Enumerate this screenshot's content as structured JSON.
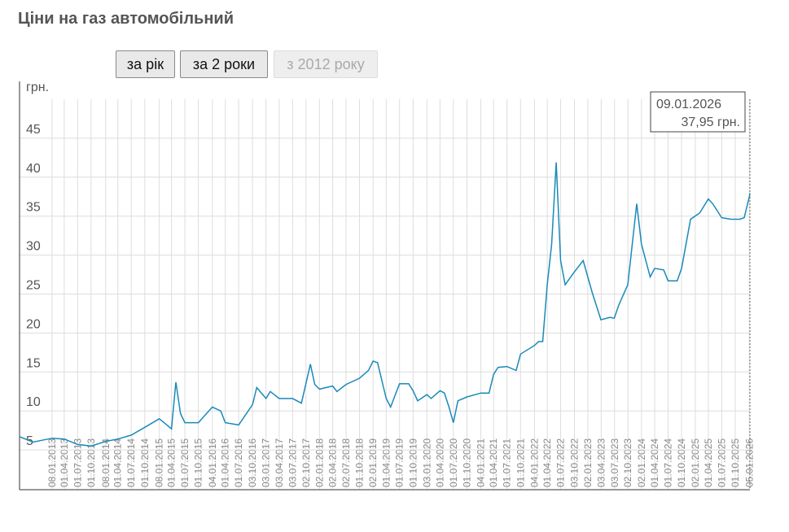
{
  "title": "Ціни на газ автомобільний",
  "buttons": [
    "за рік",
    "за 2 роки",
    "з 2012 року"
  ],
  "chart_data": {
    "type": "line",
    "y_label": "грн.",
    "color": "#1a8ab8",
    "grid": true,
    "xlim": [
      "01.06.2012",
      "09.01.2026"
    ],
    "ylim": [
      0,
      50
    ],
    "yticks": [
      5,
      10,
      15,
      20,
      25,
      30,
      35,
      40,
      45
    ],
    "xticks": [
      "08.01.2013",
      "01.04.2013",
      "01.07.2013",
      "01.10.2013",
      "08.01.2014",
      "01.04.2014",
      "01.07.2014",
      "01.10.2014",
      "08.01.2015",
      "01.04.2015",
      "01.07.2015",
      "01.10.2015",
      "04.01.2016",
      "01.04.2016",
      "01.07.2016",
      "03.10.2016",
      "03.01.2017",
      "03.04.2017",
      "03.07.2017",
      "02.10.2017",
      "02.01.2018",
      "02.04.2018",
      "02.07.2018",
      "01.10.2018",
      "02.01.2019",
      "01.04.2019",
      "01.07.2019",
      "01.10.2019",
      "03.01.2020",
      "01.04.2020",
      "01.07.2020",
      "01.10.2020",
      "04.01.2021",
      "01.04.2021",
      "01.07.2021",
      "01.10.2021",
      "04.01.2022",
      "01.04.2022",
      "01.07.2022",
      "03.10.2022",
      "02.01.2023",
      "03.04.2023",
      "03.07.2023",
      "02.10.2023",
      "02.01.2024",
      "01.04.2024",
      "01.07.2024",
      "01.10.2024",
      "02.01.2025",
      "01.04.2025",
      "01.07.2025",
      "01.10.2025",
      "05.01.2026"
    ],
    "x": [
      "01.06.2012",
      "01.09.2012",
      "08.01.2013",
      "01.04.2013",
      "01.07.2013",
      "01.10.2013",
      "08.01.2014",
      "01.04.2014",
      "01.07.2014",
      "01.10.2014",
      "08.01.2015",
      "01.03.2015",
      "01.04.2015",
      "01.05.2015",
      "01.06.2015",
      "01.07.2015",
      "01.10.2015",
      "04.01.2016",
      "01.03.2016",
      "01.04.2016",
      "01.07.2016",
      "03.10.2016",
      "01.11.2016",
      "03.01.2017",
      "01.02.2017",
      "03.04.2017",
      "03.07.2017",
      "01.09.2017",
      "01.11.2017",
      "01.12.2017",
      "02.01.2018",
      "02.04.2018",
      "01.05.2018",
      "02.07.2018",
      "01.10.2018",
      "01.12.2018",
      "02.01.2019",
      "01.02.2019",
      "01.04.2019",
      "01.05.2019",
      "01.07.2019",
      "01.09.2019",
      "01.10.2019",
      "01.11.2019",
      "03.01.2020",
      "01.02.2020",
      "01.04.2020",
      "01.05.2020",
      "01.06.2020",
      "01.07.2020",
      "01.08.2020",
      "01.10.2020",
      "04.01.2021",
      "01.03.2021",
      "01.04.2021",
      "01.05.2021",
      "01.07.2021",
      "01.09.2021",
      "01.10.2021",
      "04.01.2022",
      "01.02.2022",
      "01.03.2022",
      "01.04.2022",
      "01.05.2022",
      "01.06.2022",
      "01.07.2022",
      "01.08.2022",
      "01.10.2022",
      "01.12.2022",
      "01.02.2023",
      "01.04.2023",
      "01.06.2023",
      "01.07.2023",
      "01.08.2023",
      "01.10.2023",
      "01.12.2023",
      "02.01.2024",
      "01.03.2024",
      "01.04.2024",
      "01.06.2024",
      "01.07.2024",
      "01.09.2024",
      "01.10.2024",
      "01.12.2024",
      "01.02.2025",
      "01.04.2025",
      "01.05.2025",
      "01.07.2025",
      "01.09.2025",
      "01.11.2025",
      "01.12.2025",
      "05.01.2026",
      "09.01.2026"
    ],
    "values": [
      6.7,
      6.0,
      6.5,
      6.4,
      5.7,
      5.5,
      6.1,
      6.4,
      6.9,
      7.9,
      9.0,
      8.2,
      7.7,
      13.7,
      9.7,
      8.5,
      8.5,
      10.5,
      10.0,
      8.5,
      8.2,
      10.8,
      13.0,
      11.6,
      12.5,
      11.6,
      11.6,
      11.0,
      16.0,
      13.4,
      12.8,
      13.2,
      12.5,
      13.4,
      14.2,
      15.2,
      16.4,
      16.2,
      11.6,
      10.5,
      13.5,
      13.5,
      12.6,
      11.3,
      12.1,
      11.6,
      12.6,
      12.3,
      10.5,
      8.5,
      11.3,
      11.8,
      12.3,
      12.3,
      14.7,
      15.6,
      15.7,
      15.2,
      17.3,
      18.4,
      18.9,
      18.9,
      26.2,
      31.4,
      41.9,
      29.3,
      26.2,
      27.8,
      29.3,
      25.2,
      21.7,
      22.0,
      21.9,
      23.6,
      26.2,
      36.6,
      31.4,
      27.2,
      28.3,
      28.1,
      26.7,
      26.7,
      28.3,
      34.6,
      35.4,
      37.2,
      36.6,
      34.8,
      34.6,
      34.6,
      34.8,
      37.5,
      37.95
    ],
    "tooltip": {
      "x": "09.01.2026",
      "value": 37.95,
      "value_label": "37,95 грн."
    }
  }
}
